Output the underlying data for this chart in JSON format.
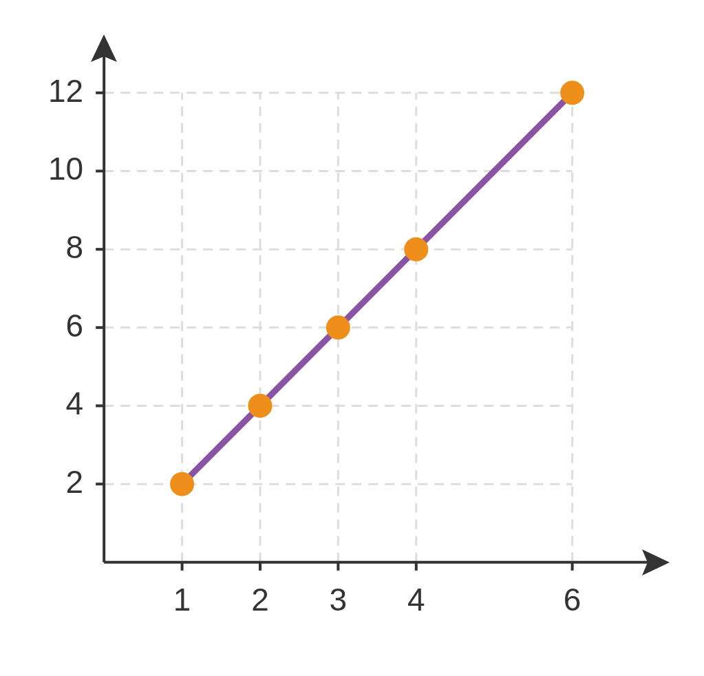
{
  "chart_data": {
    "type": "line",
    "x": [
      1,
      2,
      3,
      4,
      6
    ],
    "series": [
      {
        "color": "#8b54a3",
        "colors": [
          "#ef8f1b",
          "#ef8f1b",
          "#ef8f1b",
          "#ef8f1b",
          "#ef8f1b"
        ],
        "values": [
          2,
          4,
          6,
          8,
          12
        ]
      }
    ],
    "xlim": [
      0,
      7
    ],
    "ylim": [
      0,
      13
    ],
    "xticks": [
      1,
      2,
      3,
      4,
      6
    ],
    "yticks": [
      2,
      4,
      6,
      8,
      10,
      12
    ],
    "grid": true,
    "marker": "circle",
    "line_style": "solid",
    "legend": false
  }
}
